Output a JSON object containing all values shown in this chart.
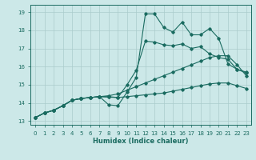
{
  "background_color": "#cce8e8",
  "grid_color": "#aacccc",
  "line_color": "#1a6b60",
  "xlabel": "Humidex (Indice chaleur)",
  "xlim": [
    -0.5,
    23.5
  ],
  "ylim": [
    12.8,
    19.4
  ],
  "yticks": [
    13,
    14,
    15,
    16,
    17,
    18,
    19
  ],
  "xticks": [
    0,
    1,
    2,
    3,
    4,
    5,
    6,
    7,
    8,
    9,
    10,
    11,
    12,
    13,
    14,
    15,
    16,
    17,
    18,
    19,
    20,
    21,
    22,
    23
  ],
  "series": [
    {
      "x": [
        0,
        1,
        2,
        3,
        4,
        5,
        6,
        7,
        8,
        9,
        10,
        11,
        12,
        13,
        14,
        15,
        16,
        17,
        18,
        19,
        20,
        21,
        22,
        23
      ],
      "y": [
        13.2,
        13.45,
        13.6,
        13.85,
        14.15,
        14.25,
        14.3,
        14.35,
        14.32,
        14.3,
        14.35,
        14.4,
        14.45,
        14.5,
        14.55,
        14.65,
        14.75,
        14.85,
        14.95,
        15.05,
        15.1,
        15.1,
        14.95,
        14.8
      ]
    },
    {
      "x": [
        0,
        1,
        2,
        3,
        4,
        5,
        6,
        7,
        8,
        9,
        10,
        11,
        12,
        13,
        14,
        15,
        16,
        17,
        18,
        19,
        20,
        21,
        22,
        23
      ],
      "y": [
        13.2,
        13.45,
        13.6,
        13.85,
        14.15,
        14.25,
        14.3,
        14.35,
        14.4,
        14.5,
        14.7,
        14.9,
        15.1,
        15.3,
        15.5,
        15.7,
        15.9,
        16.1,
        16.3,
        16.5,
        16.6,
        16.6,
        16.1,
        15.5
      ]
    },
    {
      "x": [
        0,
        1,
        2,
        3,
        4,
        5,
        6,
        7,
        8,
        9,
        10,
        11,
        12,
        13,
        14,
        15,
        16,
        17,
        18,
        19,
        20,
        21,
        22,
        23
      ],
      "y": [
        13.2,
        13.45,
        13.6,
        13.85,
        14.15,
        14.25,
        14.3,
        14.35,
        13.9,
        13.85,
        14.6,
        15.4,
        18.9,
        18.9,
        18.15,
        17.9,
        18.45,
        17.75,
        17.75,
        18.1,
        17.55,
        16.15,
        15.85,
        15.65
      ]
    },
    {
      "x": [
        0,
        1,
        2,
        3,
        4,
        5,
        6,
        7,
        8,
        9,
        10,
        11,
        12,
        13,
        14,
        15,
        16,
        17,
        18,
        19,
        20,
        21,
        22,
        23
      ],
      "y": [
        13.2,
        13.45,
        13.6,
        13.85,
        14.15,
        14.25,
        14.3,
        14.35,
        14.35,
        14.3,
        15.0,
        15.8,
        17.4,
        17.35,
        17.2,
        17.15,
        17.25,
        17.0,
        17.1,
        16.7,
        16.5,
        16.4,
        15.85,
        15.7
      ]
    }
  ]
}
